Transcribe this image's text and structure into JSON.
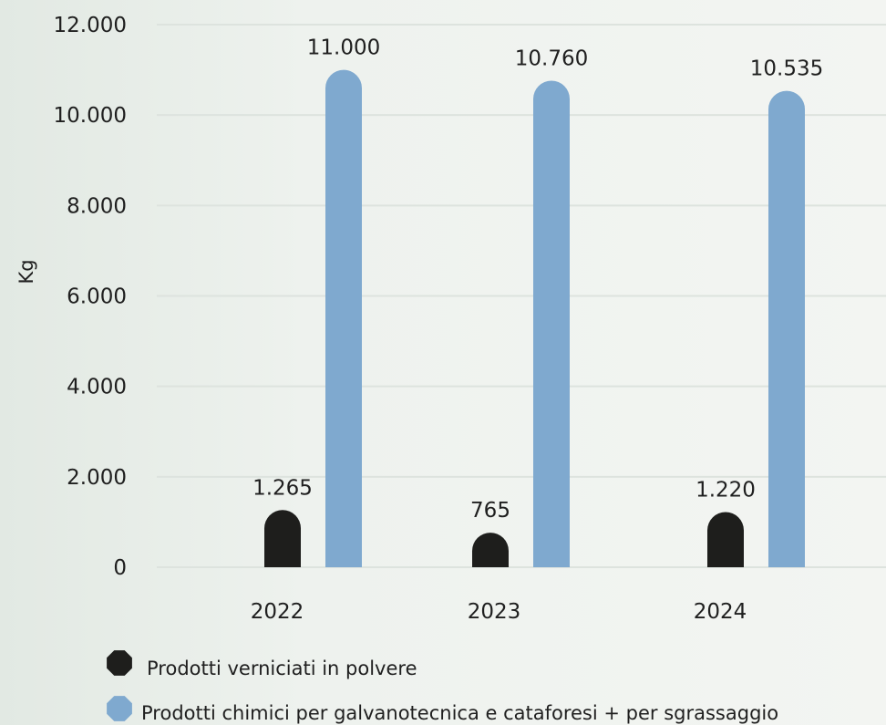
{
  "chart_data": {
    "type": "bar",
    "categories": [
      "2022",
      "2023",
      "2024"
    ],
    "series": [
      {
        "name": "Prodotti verniciati in polvere",
        "values": [
          1265,
          765,
          1220
        ],
        "labels": [
          "1.265",
          "765",
          "1.220"
        ],
        "color": "#1e1e1c"
      },
      {
        "name": "Prodotti chimici per galvanotecnica e cataforesi + per sgrassaggio",
        "values": [
          11000,
          10760,
          10535
        ],
        "labels": [
          "11.000",
          "10.760",
          "10.535"
        ],
        "color": "#7fa9cf"
      }
    ],
    "ylabel": "Kg",
    "ylim": [
      0,
      12000
    ],
    "yticks": [
      0,
      2000,
      4000,
      6000,
      8000,
      10000,
      12000
    ],
    "ytick_labels": [
      "0",
      "2.000",
      "4.000",
      "6.000",
      "8.000",
      "10.000",
      "12.000"
    ],
    "grid": true,
    "legend_position": "bottom-left"
  },
  "colors": {
    "grid": "#dde3de",
    "text": "#1f1f1f"
  }
}
